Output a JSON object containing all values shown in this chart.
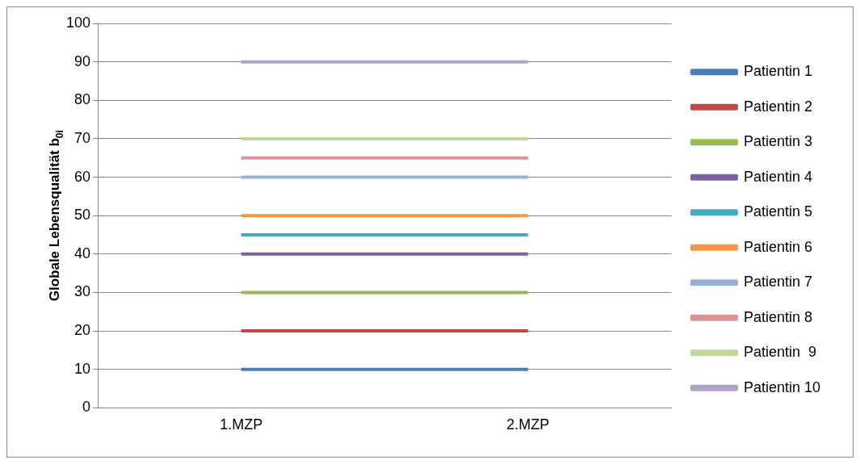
{
  "chart_data": {
    "type": "line",
    "ylabel": "Globale Lebensqualität b$_{0i}$",
    "categories": [
      "1.MZP",
      "2.MZP"
    ],
    "ylim": [
      0,
      100
    ],
    "yticks": [
      0,
      10,
      20,
      30,
      40,
      50,
      60,
      70,
      80,
      90,
      100
    ],
    "grid": "y",
    "legend": "right",
    "marker": "none",
    "line_style": "solid",
    "series": [
      {
        "name": "Patientin 1",
        "color": "#4a7ebb",
        "values": [
          10,
          10
        ]
      },
      {
        "name": "Patientin 2",
        "color": "#be4b48",
        "values": [
          20,
          20
        ]
      },
      {
        "name": "Patientin 3",
        "color": "#98b954",
        "values": [
          30,
          30
        ]
      },
      {
        "name": "Patientin 4",
        "color": "#7d60a0",
        "values": [
          40,
          40
        ]
      },
      {
        "name": "Patientin 5",
        "color": "#46aac5",
        "values": [
          45,
          45
        ]
      },
      {
        "name": "Patientin 6",
        "color": "#f79646",
        "values": [
          50,
          50
        ]
      },
      {
        "name": "Patientin 7",
        "color": "#95b3d7",
        "values": [
          60,
          60
        ]
      },
      {
        "name": "Patientin 8",
        "color": "#d99694",
        "values": [
          65,
          65
        ]
      },
      {
        "name": "Patientin  9",
        "color": "#c3d69b",
        "values": [
          70,
          70
        ]
      },
      {
        "name": "Patientin 10",
        "color": "#b2a2c7",
        "values": [
          90,
          90
        ]
      }
    ]
  }
}
